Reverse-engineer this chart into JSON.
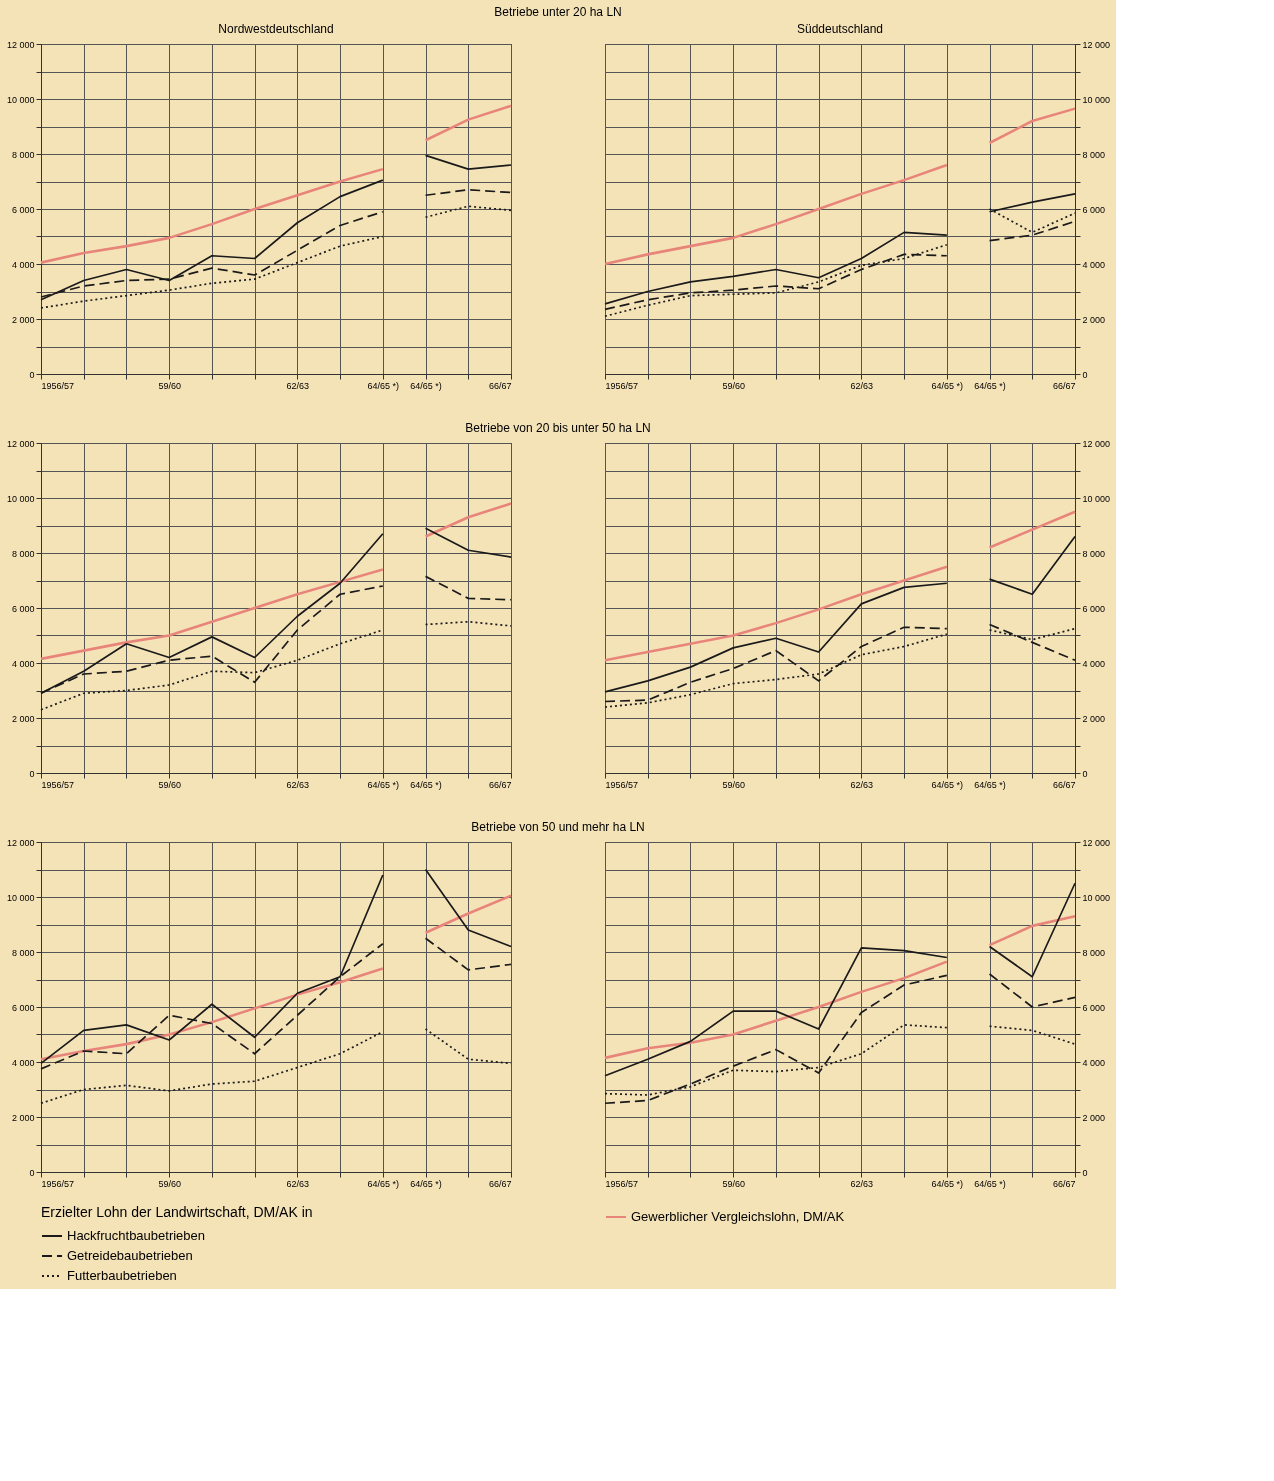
{
  "chart_data": [
    {
      "type": "line",
      "title": "Nordwestdeutschland",
      "subtitle": "Betriebe unter 20 ha LN",
      "categories": [
        "1956/57",
        null,
        null,
        "59/60",
        null,
        null,
        "62/63",
        null,
        "64/65 *)",
        "64/65 *)",
        null,
        "66/67"
      ],
      "ylim": [
        0,
        12000
      ],
      "yticks": [
        0,
        {
          "value": 1000,
          "label": null
        },
        {
          "value": 2000,
          "label": "2 000"
        },
        {
          "value": 3000,
          "label": null
        },
        {
          "value": 4000,
          "label": "4 000"
        },
        {
          "value": 5000,
          "label": null
        },
        {
          "value": 6000,
          "label": "6 000"
        },
        {
          "value": 7000,
          "label": null
        },
        {
          "value": 8000,
          "label": "8 000"
        },
        {
          "value": 9000,
          "label": null
        },
        {
          "value": 10000,
          "label": "10 000"
        },
        {
          "value": 11000,
          "label": null
        },
        {
          "value": 12000,
          "label": "12 000"
        }
      ],
      "grid": true,
      "series": [
        {
          "color": "#e8857a",
          "line_style": "solid",
          "values": [
            4050,
            4400,
            4650,
            4950,
            5450,
            6000,
            6500,
            7000,
            7450,
            null,
            null,
            null
          ]
        },
        {
          "color": "#e8857a",
          "line_style": "solid",
          "values": [
            null,
            null,
            null,
            null,
            null,
            null,
            null,
            null,
            null,
            8500,
            9250,
            9750
          ]
        },
        {
          "color": "#1a1a1a",
          "line_style": "solid",
          "values": [
            2700,
            3400,
            3800,
            3400,
            4300,
            4200,
            5500,
            6450,
            7050,
            null,
            null,
            null
          ]
        },
        {
          "color": "#1a1a1a",
          "line_style": "solid",
          "values": [
            null,
            null,
            null,
            null,
            null,
            null,
            null,
            null,
            null,
            7950,
            7450,
            7600
          ]
        },
        {
          "color": "#1a1a1a",
          "line_style": "dashed",
          "values": [
            2800,
            3200,
            3400,
            3450,
            3850,
            3600,
            4500,
            5400,
            5900,
            null,
            null,
            null
          ]
        },
        {
          "color": "#1a1a1a",
          "line_style": "dashed",
          "values": [
            null,
            null,
            null,
            null,
            null,
            null,
            null,
            null,
            null,
            6500,
            6700,
            6600
          ]
        },
        {
          "color": "#1a1a1a",
          "line_style": "dotted",
          "values": [
            2400,
            2650,
            2850,
            3050,
            3300,
            3450,
            4050,
            4650,
            5000,
            null,
            null,
            null
          ]
        },
        {
          "color": "#1a1a1a",
          "line_style": "dotted",
          "values": [
            null,
            null,
            null,
            null,
            null,
            null,
            null,
            null,
            null,
            5700,
            6100,
            5950
          ]
        }
      ]
    },
    {
      "type": "line",
      "title": "Süddeutschland",
      "categories": [
        "1956/57",
        null,
        null,
        "59/60",
        null,
        null,
        "62/63",
        null,
        "64/65 *)",
        "64/65 *)",
        null,
        "66/67"
      ],
      "y2lim": [
        0,
        12000
      ],
      "y2ticks": [
        0,
        {
          "value": 1000,
          "label": null
        },
        {
          "value": 2000,
          "label": "2 000"
        },
        {
          "value": 3000,
          "label": null
        },
        {
          "value": 4000,
          "label": "4 000"
        },
        {
          "value": 5000,
          "label": null
        },
        {
          "value": 6000,
          "label": "6 000"
        },
        {
          "value": 7000,
          "label": null
        },
        {
          "value": 8000,
          "label": "8 000"
        },
        {
          "value": 9000,
          "label": null
        },
        {
          "value": 10000,
          "label": "10 000"
        },
        {
          "value": 11000,
          "label": null
        },
        {
          "value": 12000,
          "label": "12 000"
        }
      ],
      "grid": true,
      "series": [
        {
          "axis": "y2",
          "color": "#e8857a",
          "line_style": "solid",
          "values": [
            4000,
            4350,
            4650,
            4950,
            5450,
            6000,
            6550,
            7050,
            7600,
            null,
            null,
            null
          ]
        },
        {
          "axis": "y2",
          "color": "#e8857a",
          "line_style": "solid",
          "values": [
            null,
            null,
            null,
            null,
            null,
            null,
            null,
            null,
            null,
            8400,
            9200,
            9650
          ]
        },
        {
          "axis": "y2",
          "color": "#1a1a1a",
          "line_style": "solid",
          "values": [
            2550,
            3000,
            3350,
            3550,
            3800,
            3500,
            4200,
            5150,
            5050,
            null,
            null,
            null
          ]
        },
        {
          "axis": "y2",
          "color": "#1a1a1a",
          "line_style": "solid",
          "values": [
            null,
            null,
            null,
            null,
            null,
            null,
            null,
            null,
            null,
            5900,
            6250,
            6550
          ]
        },
        {
          "axis": "y2",
          "color": "#1a1a1a",
          "line_style": "dashed",
          "values": [
            2350,
            2700,
            2950,
            3050,
            3200,
            3100,
            3800,
            4350,
            4300,
            null,
            null,
            null
          ]
        },
        {
          "axis": "y2",
          "color": "#1a1a1a",
          "line_style": "dashed",
          "values": [
            null,
            null,
            null,
            null,
            null,
            null,
            null,
            null,
            null,
            4850,
            5050,
            5550
          ]
        },
        {
          "axis": "y2",
          "color": "#1a1a1a",
          "line_style": "dotted",
          "values": [
            2100,
            2500,
            2850,
            2900,
            2950,
            3350,
            3950,
            4200,
            4700,
            null,
            null,
            null
          ]
        },
        {
          "axis": "y2",
          "color": "#1a1a1a",
          "line_style": "dotted",
          "values": [
            null,
            null,
            null,
            null,
            null,
            null,
            null,
            null,
            null,
            6000,
            5150,
            5850
          ]
        }
      ]
    },
    {
      "type": "line",
      "subtitle": "Betriebe von 20 bis unter 50 ha LN",
      "categories": [
        "1956/57",
        null,
        null,
        "59/60",
        null,
        null,
        "62/63",
        null,
        "64/65 *)",
        "64/65 *)",
        null,
        "66/67"
      ],
      "ylim": [
        0,
        12000
      ],
      "yticks": [
        0,
        {
          "value": 1000,
          "label": null
        },
        {
          "value": 2000,
          "label": "2 000"
        },
        {
          "value": 3000,
          "label": null
        },
        {
          "value": 4000,
          "label": "4 000"
        },
        {
          "value": 5000,
          "label": null
        },
        {
          "value": 6000,
          "label": "6 000"
        },
        {
          "value": 7000,
          "label": null
        },
        {
          "value": 8000,
          "label": "8 000"
        },
        {
          "value": 9000,
          "label": null
        },
        {
          "value": 10000,
          "label": "10 000"
        },
        {
          "value": 11000,
          "label": null
        },
        {
          "value": 12000,
          "label": "12 000"
        }
      ],
      "grid": true,
      "series": [
        {
          "color": "#e8857a",
          "line_style": "solid",
          "values": [
            4150,
            4450,
            4750,
            5000,
            5500,
            6000,
            6500,
            6950,
            7400,
            null,
            null,
            null
          ]
        },
        {
          "color": "#e8857a",
          "line_style": "solid",
          "values": [
            null,
            null,
            null,
            null,
            null,
            null,
            null,
            null,
            null,
            8600,
            9300,
            9800
          ]
        },
        {
          "color": "#1a1a1a",
          "line_style": "solid",
          "values": [
            2900,
            3700,
            4700,
            4200,
            4950,
            4200,
            5700,
            6900,
            8700,
            null,
            null,
            null
          ]
        },
        {
          "color": "#1a1a1a",
          "line_style": "solid",
          "values": [
            null,
            null,
            null,
            null,
            null,
            null,
            null,
            null,
            null,
            8900,
            8100,
            7850
          ]
        },
        {
          "color": "#1a1a1a",
          "line_style": "dashed",
          "values": [
            2900,
            3600,
            3700,
            4100,
            4250,
            3300,
            5200,
            6500,
            6800,
            null,
            null,
            null
          ]
        },
        {
          "color": "#1a1a1a",
          "line_style": "dashed",
          "values": [
            null,
            null,
            null,
            null,
            null,
            null,
            null,
            null,
            null,
            7150,
            6350,
            6300
          ]
        },
        {
          "color": "#1a1a1a",
          "line_style": "dotted",
          "values": [
            2300,
            2900,
            3000,
            3200,
            3700,
            3650,
            4100,
            4700,
            5200,
            null,
            null,
            null
          ]
        },
        {
          "color": "#1a1a1a",
          "line_style": "dotted",
          "values": [
            null,
            null,
            null,
            null,
            null,
            null,
            null,
            null,
            null,
            5400,
            5500,
            5350
          ]
        }
      ]
    },
    {
      "type": "line",
      "categories": [
        "1956/57",
        null,
        null,
        "59/60",
        null,
        null,
        "62/63",
        null,
        "64/65 *)",
        "64/65 *)",
        null,
        "66/67"
      ],
      "y2lim": [
        0,
        12000
      ],
      "y2ticks": [
        0,
        {
          "value": 1000,
          "label": null
        },
        {
          "value": 2000,
          "label": "2 000"
        },
        {
          "value": 3000,
          "label": null
        },
        {
          "value": 4000,
          "label": "4 000"
        },
        {
          "value": 5000,
          "label": null
        },
        {
          "value": 6000,
          "label": "6 000"
        },
        {
          "value": 7000,
          "label": null
        },
        {
          "value": 8000,
          "label": "8 000"
        },
        {
          "value": 9000,
          "label": null
        },
        {
          "value": 10000,
          "label": "10 000"
        },
        {
          "value": 11000,
          "label": null
        },
        {
          "value": 12000,
          "label": "12 000"
        }
      ],
      "grid": true,
      "series": [
        {
          "axis": "y2",
          "color": "#e8857a",
          "line_style": "solid",
          "values": [
            4100,
            4400,
            4700,
            5000,
            5450,
            5950,
            6500,
            7000,
            7500,
            null,
            null,
            null
          ]
        },
        {
          "axis": "y2",
          "color": "#e8857a",
          "line_style": "solid",
          "values": [
            null,
            null,
            null,
            null,
            null,
            null,
            null,
            null,
            null,
            8200,
            8850,
            9500
          ]
        },
        {
          "axis": "y2",
          "color": "#1a1a1a",
          "line_style": "solid",
          "values": [
            2950,
            3350,
            3850,
            4550,
            4900,
            4400,
            6150,
            6750,
            6900,
            null,
            null,
            null
          ]
        },
        {
          "axis": "y2",
          "color": "#1a1a1a",
          "line_style": "solid",
          "values": [
            null,
            null,
            null,
            null,
            null,
            null,
            null,
            null,
            null,
            7050,
            6500,
            8600
          ]
        },
        {
          "axis": "y2",
          "color": "#1a1a1a",
          "line_style": "dashed",
          "values": [
            2600,
            2650,
            3300,
            3800,
            4450,
            3350,
            4600,
            5300,
            5250,
            null,
            null,
            null
          ]
        },
        {
          "axis": "y2",
          "color": "#1a1a1a",
          "line_style": "dashed",
          "values": [
            null,
            null,
            null,
            null,
            null,
            null,
            null,
            null,
            null,
            5400,
            4750,
            4100
          ]
        },
        {
          "axis": "y2",
          "color": "#1a1a1a",
          "line_style": "dotted",
          "values": [
            2400,
            2550,
            2850,
            3250,
            3400,
            3600,
            4300,
            4600,
            5050,
            null,
            null,
            null
          ]
        },
        {
          "axis": "y2",
          "color": "#1a1a1a",
          "line_style": "dotted",
          "values": [
            null,
            null,
            null,
            null,
            null,
            null,
            null,
            null,
            null,
            5200,
            4850,
            5250
          ]
        }
      ]
    },
    {
      "type": "line",
      "subtitle": "Betriebe von 50 und mehr ha LN",
      "legend_title": "Erzielter Lohn der Landwirtschaft, DM/AK in",
      "legend": "bottom",
      "categories": [
        "1956/57",
        null,
        null,
        "59/60",
        null,
        null,
        "62/63",
        null,
        "64/65 *)",
        "64/65 *)",
        null,
        "66/67"
      ],
      "ylim": [
        0,
        12000
      ],
      "yticks": [
        0,
        {
          "value": 1000,
          "label": null
        },
        {
          "value": 2000,
          "label": "2 000"
        },
        {
          "value": 3000,
          "label": null
        },
        {
          "value": 4000,
          "label": "4 000"
        },
        {
          "value": 5000,
          "label": null
        },
        {
          "value": 6000,
          "label": "6 000"
        },
        {
          "value": 7000,
          "label": null
        },
        {
          "value": 8000,
          "label": "8 000"
        },
        {
          "value": 9000,
          "label": null
        },
        {
          "value": 10000,
          "label": "10 000"
        },
        {
          "value": 11000,
          "label": null
        },
        {
          "value": 12000,
          "label": "12 000"
        }
      ],
      "grid": true,
      "series": [
        {
          "color": "#e8857a",
          "line_style": "solid",
          "values": [
            4100,
            4400,
            4650,
            5000,
            5450,
            5950,
            6450,
            6900,
            7400,
            null,
            null,
            null
          ]
        },
        {
          "color": "#e8857a",
          "line_style": "solid",
          "values": [
            null,
            null,
            null,
            null,
            null,
            null,
            null,
            null,
            null,
            8700,
            9400,
            10050
          ]
        },
        {
          "name": "Hackfruchtbaubetrieben",
          "color": "#1a1a1a",
          "line_style": "solid",
          "values": [
            3950,
            5150,
            5350,
            4800,
            6100,
            4900,
            6500,
            7100,
            10800,
            null,
            null,
            null
          ]
        },
        {
          "color": "#1a1a1a",
          "line_style": "solid",
          "values": [
            null,
            null,
            null,
            null,
            null,
            null,
            null,
            null,
            null,
            11000,
            8800,
            8200
          ]
        },
        {
          "name": "Getreidebaubetrieben",
          "color": "#1a1a1a",
          "line_style": "dashed",
          "values": [
            3750,
            4400,
            4300,
            5700,
            5400,
            4300,
            5700,
            7100,
            8300,
            null,
            null,
            null
          ]
        },
        {
          "color": "#1a1a1a",
          "line_style": "dashed",
          "values": [
            null,
            null,
            null,
            null,
            null,
            null,
            null,
            null,
            null,
            8500,
            7350,
            7550
          ]
        },
        {
          "name": "Futterbaubetrieben",
          "color": "#1a1a1a",
          "line_style": "dotted",
          "values": [
            2500,
            3000,
            3150,
            2950,
            3200,
            3300,
            3800,
            4300,
            5100,
            null,
            null,
            null
          ]
        },
        {
          "color": "#1a1a1a",
          "line_style": "dotted",
          "values": [
            null,
            null,
            null,
            null,
            null,
            null,
            null,
            null,
            null,
            5200,
            4100,
            3950
          ]
        }
      ]
    },
    {
      "type": "line",
      "legend": "bottom",
      "categories": [
        "1956/57",
        null,
        null,
        "59/60",
        null,
        null,
        "62/63",
        null,
        "64/65 *)",
        "64/65 *)",
        null,
        "66/67"
      ],
      "y2lim": [
        0,
        12000
      ],
      "y2ticks": [
        0,
        {
          "value": 1000,
          "label": null
        },
        {
          "value": 2000,
          "label": "2 000"
        },
        {
          "value": 3000,
          "label": null
        },
        {
          "value": 4000,
          "label": "4 000"
        },
        {
          "value": 5000,
          "label": null
        },
        {
          "value": 6000,
          "label": "6 000"
        },
        {
          "value": 7000,
          "label": null
        },
        {
          "value": 8000,
          "label": "8 000"
        },
        {
          "value": 9000,
          "label": null
        },
        {
          "value": 10000,
          "label": "10 000"
        },
        {
          "value": 11000,
          "label": null
        },
        {
          "value": 12000,
          "label": "12 000"
        }
      ],
      "grid": true,
      "series": [
        {
          "axis": "y2",
          "name": "Gewerblicher Vergleichslohn, DM/AK",
          "color": "#e8857a",
          "line_style": "solid",
          "values": [
            4150,
            4500,
            4700,
            5000,
            5500,
            6000,
            6550,
            7050,
            7650,
            null,
            null,
            null
          ]
        },
        {
          "axis": "y2",
          "color": "#e8857a",
          "line_style": "solid",
          "values": [
            null,
            null,
            null,
            null,
            null,
            null,
            null,
            null,
            null,
            8250,
            8950,
            9300
          ]
        },
        {
          "axis": "y2",
          "color": "#1a1a1a",
          "line_style": "solid",
          "values": [
            3500,
            4100,
            4750,
            5850,
            5850,
            5200,
            8150,
            8050,
            7800,
            null,
            null,
            null
          ]
        },
        {
          "axis": "y2",
          "color": "#1a1a1a",
          "line_style": "solid",
          "values": [
            null,
            null,
            null,
            null,
            null,
            null,
            null,
            null,
            null,
            8200,
            7100,
            10500
          ]
        },
        {
          "axis": "y2",
          "color": "#1a1a1a",
          "line_style": "dashed",
          "values": [
            2500,
            2600,
            3200,
            3850,
            4450,
            3600,
            5800,
            6800,
            7150,
            null,
            null,
            null
          ]
        },
        {
          "axis": "y2",
          "color": "#1a1a1a",
          "line_style": "dashed",
          "values": [
            null,
            null,
            null,
            null,
            null,
            null,
            null,
            null,
            null,
            7200,
            6000,
            6350
          ]
        },
        {
          "axis": "y2",
          "color": "#1a1a1a",
          "line_style": "dotted",
          "values": [
            2850,
            2800,
            3100,
            3700,
            3650,
            3800,
            4300,
            5350,
            5250,
            null,
            null,
            null
          ]
        },
        {
          "axis": "y2",
          "color": "#1a1a1a",
          "line_style": "dotted",
          "values": [
            null,
            null,
            null,
            null,
            null,
            null,
            null,
            null,
            null,
            5300,
            5150,
            4650
          ]
        }
      ]
    }
  ]
}
